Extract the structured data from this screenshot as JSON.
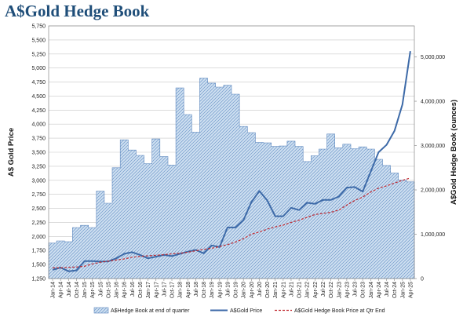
{
  "page": {
    "title": "A$Gold Hedge Book"
  },
  "colors": {
    "title": "#1f4e79",
    "hedge_fill": "#cfe0f1",
    "hedge_hatch": "#6f97c9",
    "hedge_stroke": "#5b86bd",
    "gold_price": "#3d6aa8",
    "hedge_price": "#c0282f"
  },
  "chart_data": {
    "type": "area",
    "title": "A$Gold Hedge Book",
    "ylabel": "A$ Gold Price",
    "y2label": "A$Gold Hedge Book (ounces)",
    "ylim": [
      1250,
      5750
    ],
    "y_ticks": [
      1250,
      1500,
      1750,
      2000,
      2250,
      2500,
      2750,
      3000,
      3250,
      3500,
      3750,
      4000,
      4250,
      4500,
      4750,
      5000,
      5250,
      5500,
      5750
    ],
    "y_tick_labels": [
      "1,250",
      "1,500",
      "1,750",
      "2,000",
      "2,250",
      "2,500",
      "2,750",
      "3,000",
      "3,250",
      "3,500",
      "3,750",
      "4,000",
      "4,250",
      "4,500",
      "4,750",
      "5,000",
      "5,250",
      "5,500",
      "5,750"
    ],
    "y2lim": [
      0,
      5700000
    ],
    "y2_ticks": [
      0,
      1000000,
      2000000,
      3000000,
      4000000,
      5000000
    ],
    "y2_tick_labels": [
      "0",
      "1,000,000",
      "2,000,000",
      "3,000,000",
      "4,000,000",
      "5,000,000"
    ],
    "x_tick_labels": [
      "Jan-14",
      "Apr-14",
      "Jul-14",
      "Oct-14",
      "Jan-15",
      "Apr-15",
      "Jul-15",
      "Oct-15",
      "Jan-16",
      "Apr-16",
      "Jul-16",
      "Oct-16",
      "Jan-17",
      "Apr-17",
      "Jul-17",
      "Oct-17",
      "Jan-18",
      "Apr-18",
      "Jul-18",
      "Oct-18",
      "Jan-19",
      "Apr-19",
      "Jul-19",
      "Oct-19",
      "Jan-20",
      "Apr-20",
      "Jul-20",
      "Oct-20",
      "Jan-21",
      "Apr-21",
      "Jul-21",
      "Oct-21",
      "Jan-22",
      "Apr-22",
      "Jul-22",
      "Oct-22",
      "Jan-23",
      "Apr-23",
      "Jul-23",
      "Oct-23",
      "Jan-24",
      "Apr-24",
      "Jul-24",
      "Oct-24",
      "Jan-25",
      "Apr-25"
    ],
    "grid": true,
    "legend_position": "bottom",
    "series": [
      {
        "name": "A$Hedge Book at end of quarter",
        "type": "area",
        "axis": "right",
        "values": [
          800000,
          850000,
          830000,
          1150000,
          1200000,
          1150000,
          1970000,
          1700000,
          2500000,
          3130000,
          2900000,
          2780000,
          2590000,
          3150000,
          2750000,
          2560000,
          4300000,
          3700000,
          3300000,
          4520000,
          4410000,
          4320000,
          4360000,
          4160000,
          3430000,
          3290000,
          3070000,
          3060000,
          2980000,
          2990000,
          3100000,
          2980000,
          2640000,
          2770000,
          2920000,
          3260000,
          2950000,
          3030000,
          2930000,
          2970000,
          2920000,
          2690000,
          2550000,
          2380000,
          2220000,
          2180000
        ]
      },
      {
        "name": "A$Gold Price",
        "type": "line",
        "axis": "left",
        "values": [
          1405,
          1445,
          1380,
          1395,
          1560,
          1560,
          1555,
          1555,
          1610,
          1690,
          1720,
          1670,
          1610,
          1640,
          1670,
          1650,
          1690,
          1730,
          1760,
          1700,
          1840,
          1810,
          2160,
          2160,
          2290,
          2610,
          2810,
          2640,
          2360,
          2360,
          2510,
          2470,
          2600,
          2580,
          2650,
          2650,
          2710,
          2870,
          2880,
          2800,
          3150,
          3500,
          3630,
          3880,
          4350,
          5300
        ]
      },
      {
        "name": "A$Gold Hedge Book Price at Qtr End",
        "type": "line",
        "axis": "left",
        "values": [
          1440,
          1440,
          1450,
          1455,
          1470,
          1510,
          1540,
          1560,
          1580,
          1600,
          1630,
          1645,
          1655,
          1665,
          1675,
          1690,
          1700,
          1720,
          1745,
          1770,
          1790,
          1820,
          1855,
          1900,
          1960,
          2040,
          2080,
          2130,
          2170,
          2200,
          2250,
          2290,
          2340,
          2390,
          2410,
          2430,
          2470,
          2560,
          2640,
          2700,
          2790,
          2860,
          2900,
          2950,
          3000,
          3040
        ]
      }
    ]
  }
}
